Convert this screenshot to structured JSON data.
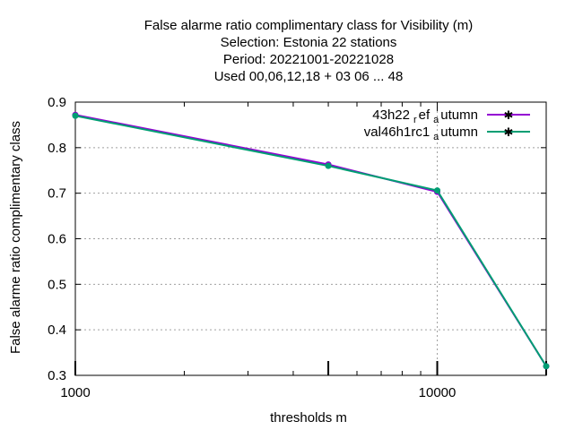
{
  "chart_data": {
    "type": "line",
    "title_lines": [
      "False alarme ratio complimentary class  for Visibility (m)",
      "Selection: Estonia      22 stations",
      "Period: 20221001-20221028",
      "Used  00,06,12,18  + 03 06 ... 48"
    ],
    "xlabel": "thresholds m",
    "ylabel": "False alarme ratio complimentary class",
    "x_scale": "log",
    "xlim": [
      1000,
      20000
    ],
    "ylim": [
      0.3,
      0.9
    ],
    "x_ticks": [
      {
        "value": 1000,
        "label": "1000"
      },
      {
        "value": 10000,
        "label": "10000"
      }
    ],
    "y_ticks": [
      {
        "value": 0.3,
        "label": "0.3"
      },
      {
        "value": 0.4,
        "label": "0.4"
      },
      {
        "value": 0.5,
        "label": "0.5"
      },
      {
        "value": 0.6,
        "label": "0.6"
      },
      {
        "value": 0.7,
        "label": "0.7"
      },
      {
        "value": 0.8,
        "label": "0.8"
      },
      {
        "value": 0.9,
        "label": "0.9"
      }
    ],
    "grid": true,
    "legend_position": "top-right",
    "series": [
      {
        "name_main": "43h22",
        "name_sub1": "r",
        "name_mid": "ef",
        "name_sub2": "a",
        "name_end": "utumn",
        "color": "#9400d3",
        "x": [
          1000,
          5000,
          10000,
          20000
        ],
        "y": [
          0.872,
          0.763,
          0.703,
          0.32
        ]
      },
      {
        "name_main": "val46h1rc1",
        "name_sub1": "a",
        "name_mid": "",
        "name_sub2": "",
        "name_end": "utumn",
        "color": "#009e73",
        "x": [
          1000,
          5000,
          10000,
          20000
        ],
        "y": [
          0.87,
          0.76,
          0.706,
          0.32
        ]
      }
    ]
  }
}
